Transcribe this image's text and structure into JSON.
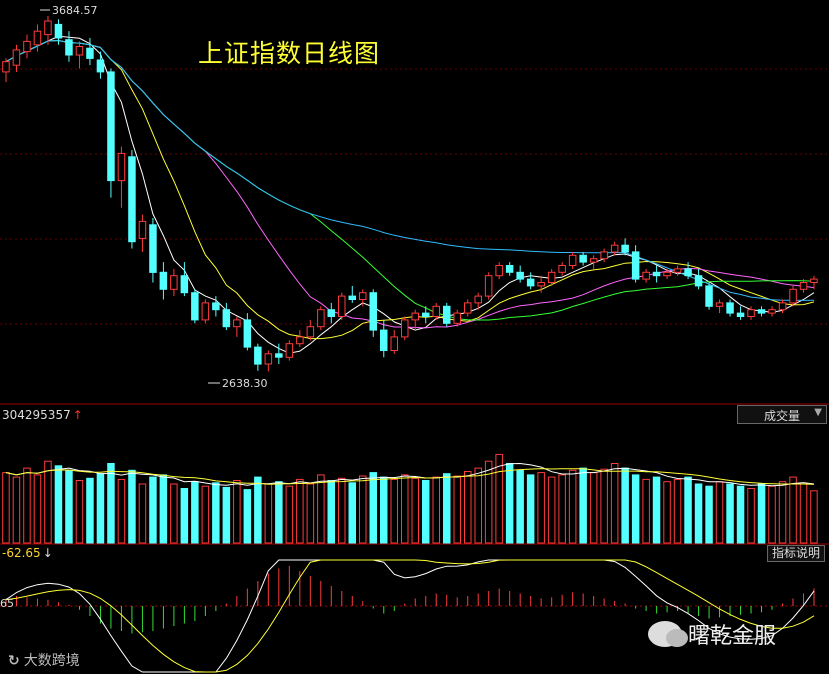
{
  "chart_data": {
    "type": "candlestick",
    "title": "上证指数日线图",
    "price_high_label": "3684.57",
    "price_low_label": "2638.30",
    "ylim": [
      2560,
      3720
    ],
    "ohlc": [
      [
        3520,
        3560,
        3490,
        3550
      ],
      [
        3540,
        3600,
        3520,
        3585
      ],
      [
        3580,
        3630,
        3560,
        3610
      ],
      [
        3600,
        3660,
        3580,
        3640
      ],
      [
        3630,
        3684.57,
        3600,
        3670
      ],
      [
        3660,
        3675,
        3600,
        3620
      ],
      [
        3615,
        3640,
        3550,
        3570
      ],
      [
        3570,
        3610,
        3530,
        3595
      ],
      [
        3590,
        3620,
        3540,
        3560
      ],
      [
        3555,
        3580,
        3500,
        3520
      ],
      [
        3520,
        3530,
        3150,
        3200
      ],
      [
        3200,
        3300,
        3120,
        3280
      ],
      [
        3270,
        3290,
        3000,
        3020
      ],
      [
        3030,
        3100,
        2990,
        3080
      ],
      [
        3070,
        3090,
        2900,
        2930
      ],
      [
        2930,
        2960,
        2850,
        2880
      ],
      [
        2880,
        2940,
        2860,
        2920
      ],
      [
        2920,
        2960,
        2860,
        2870
      ],
      [
        2870,
        2880,
        2780,
        2790
      ],
      [
        2790,
        2850,
        2780,
        2840
      ],
      [
        2840,
        2860,
        2800,
        2820
      ],
      [
        2820,
        2840,
        2760,
        2770
      ],
      [
        2770,
        2800,
        2740,
        2790
      ],
      [
        2790,
        2810,
        2700,
        2710
      ],
      [
        2710,
        2720,
        2640,
        2660
      ],
      [
        2660,
        2700,
        2638.3,
        2690
      ],
      [
        2690,
        2720,
        2660,
        2680
      ],
      [
        2680,
        2730,
        2670,
        2720
      ],
      [
        2720,
        2760,
        2710,
        2740
      ],
      [
        2740,
        2790,
        2730,
        2770
      ],
      [
        2770,
        2830,
        2760,
        2820
      ],
      [
        2820,
        2840,
        2780,
        2800
      ],
      [
        2800,
        2870,
        2790,
        2860
      ],
      [
        2860,
        2890,
        2840,
        2850
      ],
      [
        2850,
        2880,
        2830,
        2870
      ],
      [
        2870,
        2880,
        2740,
        2760
      ],
      [
        2760,
        2790,
        2680,
        2700
      ],
      [
        2700,
        2760,
        2690,
        2740
      ],
      [
        2740,
        2800,
        2730,
        2790
      ],
      [
        2790,
        2820,
        2760,
        2810
      ],
      [
        2810,
        2830,
        2780,
        2800
      ],
      [
        2800,
        2840,
        2790,
        2830
      ],
      [
        2830,
        2840,
        2770,
        2780
      ],
      [
        2780,
        2820,
        2770,
        2810
      ],
      [
        2810,
        2850,
        2800,
        2840
      ],
      [
        2840,
        2870,
        2820,
        2860
      ],
      [
        2860,
        2930,
        2850,
        2920
      ],
      [
        2920,
        2960,
        2910,
        2950
      ],
      [
        2950,
        2960,
        2920,
        2930
      ],
      [
        2930,
        2950,
        2900,
        2910
      ],
      [
        2910,
        2930,
        2880,
        2890
      ],
      [
        2890,
        2920,
        2870,
        2900
      ],
      [
        2900,
        2940,
        2890,
        2930
      ],
      [
        2930,
        2960,
        2920,
        2950
      ],
      [
        2950,
        2990,
        2940,
        2980
      ],
      [
        2980,
        2990,
        2950,
        2960
      ],
      [
        2960,
        2980,
        2940,
        2970
      ],
      [
        2970,
        3000,
        2960,
        2990
      ],
      [
        2990,
        3020,
        2980,
        3010
      ],
      [
        3010,
        3030,
        2980,
        2990
      ],
      [
        2990,
        3010,
        2900,
        2910
      ],
      [
        2910,
        2940,
        2900,
        2930
      ],
      [
        2930,
        2950,
        2900,
        2920
      ],
      [
        2920,
        2940,
        2910,
        2930
      ],
      [
        2930,
        2950,
        2920,
        2940
      ],
      [
        2940,
        2960,
        2910,
        2920
      ],
      [
        2920,
        2940,
        2880,
        2890
      ],
      [
        2890,
        2900,
        2820,
        2830
      ],
      [
        2830,
        2850,
        2810,
        2840
      ],
      [
        2840,
        2850,
        2800,
        2810
      ],
      [
        2810,
        2830,
        2790,
        2800
      ],
      [
        2800,
        2830,
        2790,
        2820
      ],
      [
        2820,
        2830,
        2800,
        2810
      ],
      [
        2810,
        2830,
        2800,
        2820
      ],
      [
        2820,
        2850,
        2810,
        2840
      ],
      [
        2840,
        2890,
        2830,
        2880
      ],
      [
        2880,
        2910,
        2870,
        2900
      ],
      [
        2900,
        2920,
        2880,
        2910
      ]
    ],
    "volume_readout": "304295357",
    "volume_indicator": "成交量",
    "volume": [
      62,
      58,
      66,
      60,
      72,
      68,
      64,
      55,
      57,
      61,
      70,
      56,
      64,
      52,
      58,
      60,
      52,
      48,
      54,
      50,
      53,
      49,
      55,
      47,
      58,
      52,
      54,
      50,
      56,
      52,
      60,
      55,
      57,
      53,
      59,
      62,
      58,
      56,
      60,
      57,
      55,
      58,
      61,
      59,
      63,
      66,
      72,
      78,
      70,
      64,
      60,
      62,
      58,
      60,
      64,
      66,
      62,
      65,
      70,
      66,
      60,
      56,
      58,
      54,
      56,
      58,
      52,
      50,
      54,
      52,
      50,
      48,
      52,
      50,
      54,
      58,
      52,
      46
    ],
    "macd_readout": "-62.65",
    "macd_left_label": "65",
    "macd_hist": [
      6,
      8,
      7,
      6,
      5,
      3,
      1,
      -3,
      -8,
      -14,
      -18,
      -20,
      -22,
      -21,
      -20,
      -18,
      -16,
      -14,
      -12,
      -8,
      -4,
      2,
      8,
      14,
      20,
      26,
      30,
      32,
      28,
      24,
      20,
      16,
      12,
      8,
      4,
      -2,
      -6,
      -4,
      2,
      6,
      8,
      10,
      9,
      7,
      8,
      10,
      12,
      14,
      12,
      10,
      8,
      6,
      7,
      9,
      11,
      10,
      8,
      6,
      4,
      2,
      -2,
      -4,
      -6,
      -5,
      -4,
      -6,
      -8,
      -10,
      -9,
      -8,
      -7,
      -6,
      -5,
      -3,
      2,
      6,
      10,
      14
    ]
  },
  "ui": {
    "help_button": "指标说明"
  },
  "watermarks": {
    "left_brand": "大数跨境",
    "right_brand": "曙乾金服"
  }
}
